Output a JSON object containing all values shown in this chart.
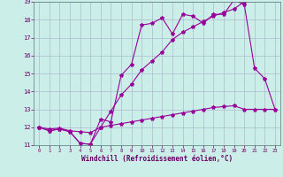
{
  "xlabel": "Windchill (Refroidissement éolien,°C)",
  "bg_color": "#cceee8",
  "line_color": "#990099",
  "grid_color": "#aabbcc",
  "xlim": [
    -0.5,
    23.5
  ],
  "ylim": [
    11,
    19
  ],
  "xticks": [
    0,
    1,
    2,
    3,
    4,
    5,
    6,
    7,
    8,
    9,
    10,
    11,
    12,
    13,
    14,
    15,
    16,
    17,
    18,
    19,
    20,
    21,
    22,
    23
  ],
  "yticks": [
    11,
    12,
    13,
    14,
    15,
    16,
    17,
    18,
    19
  ],
  "s1_x": [
    0,
    1,
    2,
    3,
    4,
    5,
    6,
    7,
    8,
    9,
    10,
    11,
    12,
    13,
    14,
    15,
    16,
    17,
    18,
    19,
    20,
    21,
    22,
    23
  ],
  "s1_y": [
    12.0,
    11.8,
    11.9,
    11.75,
    11.1,
    11.05,
    12.45,
    12.3,
    14.9,
    15.5,
    17.7,
    17.8,
    18.1,
    17.2,
    18.3,
    18.2,
    17.8,
    18.3,
    18.3,
    19.1,
    18.85,
    15.3,
    14.7,
    13.0
  ],
  "s2_x": [
    0,
    1,
    2,
    3,
    4,
    5,
    6,
    7,
    8,
    9,
    10,
    11,
    12,
    13,
    14,
    15,
    16,
    17,
    18,
    19,
    20
  ],
  "s2_y": [
    12.0,
    11.8,
    11.9,
    11.75,
    11.1,
    11.05,
    12.0,
    12.9,
    13.8,
    14.4,
    15.2,
    15.7,
    16.2,
    16.9,
    17.3,
    17.6,
    17.9,
    18.2,
    18.4,
    18.6,
    19.0
  ],
  "s3_x": [
    0,
    1,
    2,
    3,
    4,
    5,
    6,
    7,
    8,
    9,
    10,
    11,
    12,
    13,
    14,
    15,
    16,
    17,
    18,
    19,
    20,
    21,
    22,
    23
  ],
  "s3_y": [
    12.0,
    11.9,
    11.95,
    11.8,
    11.75,
    11.7,
    12.0,
    12.1,
    12.2,
    12.3,
    12.4,
    12.5,
    12.6,
    12.7,
    12.8,
    12.9,
    13.0,
    13.1,
    13.15,
    13.2,
    13.0,
    13.0,
    13.0,
    13.0
  ]
}
